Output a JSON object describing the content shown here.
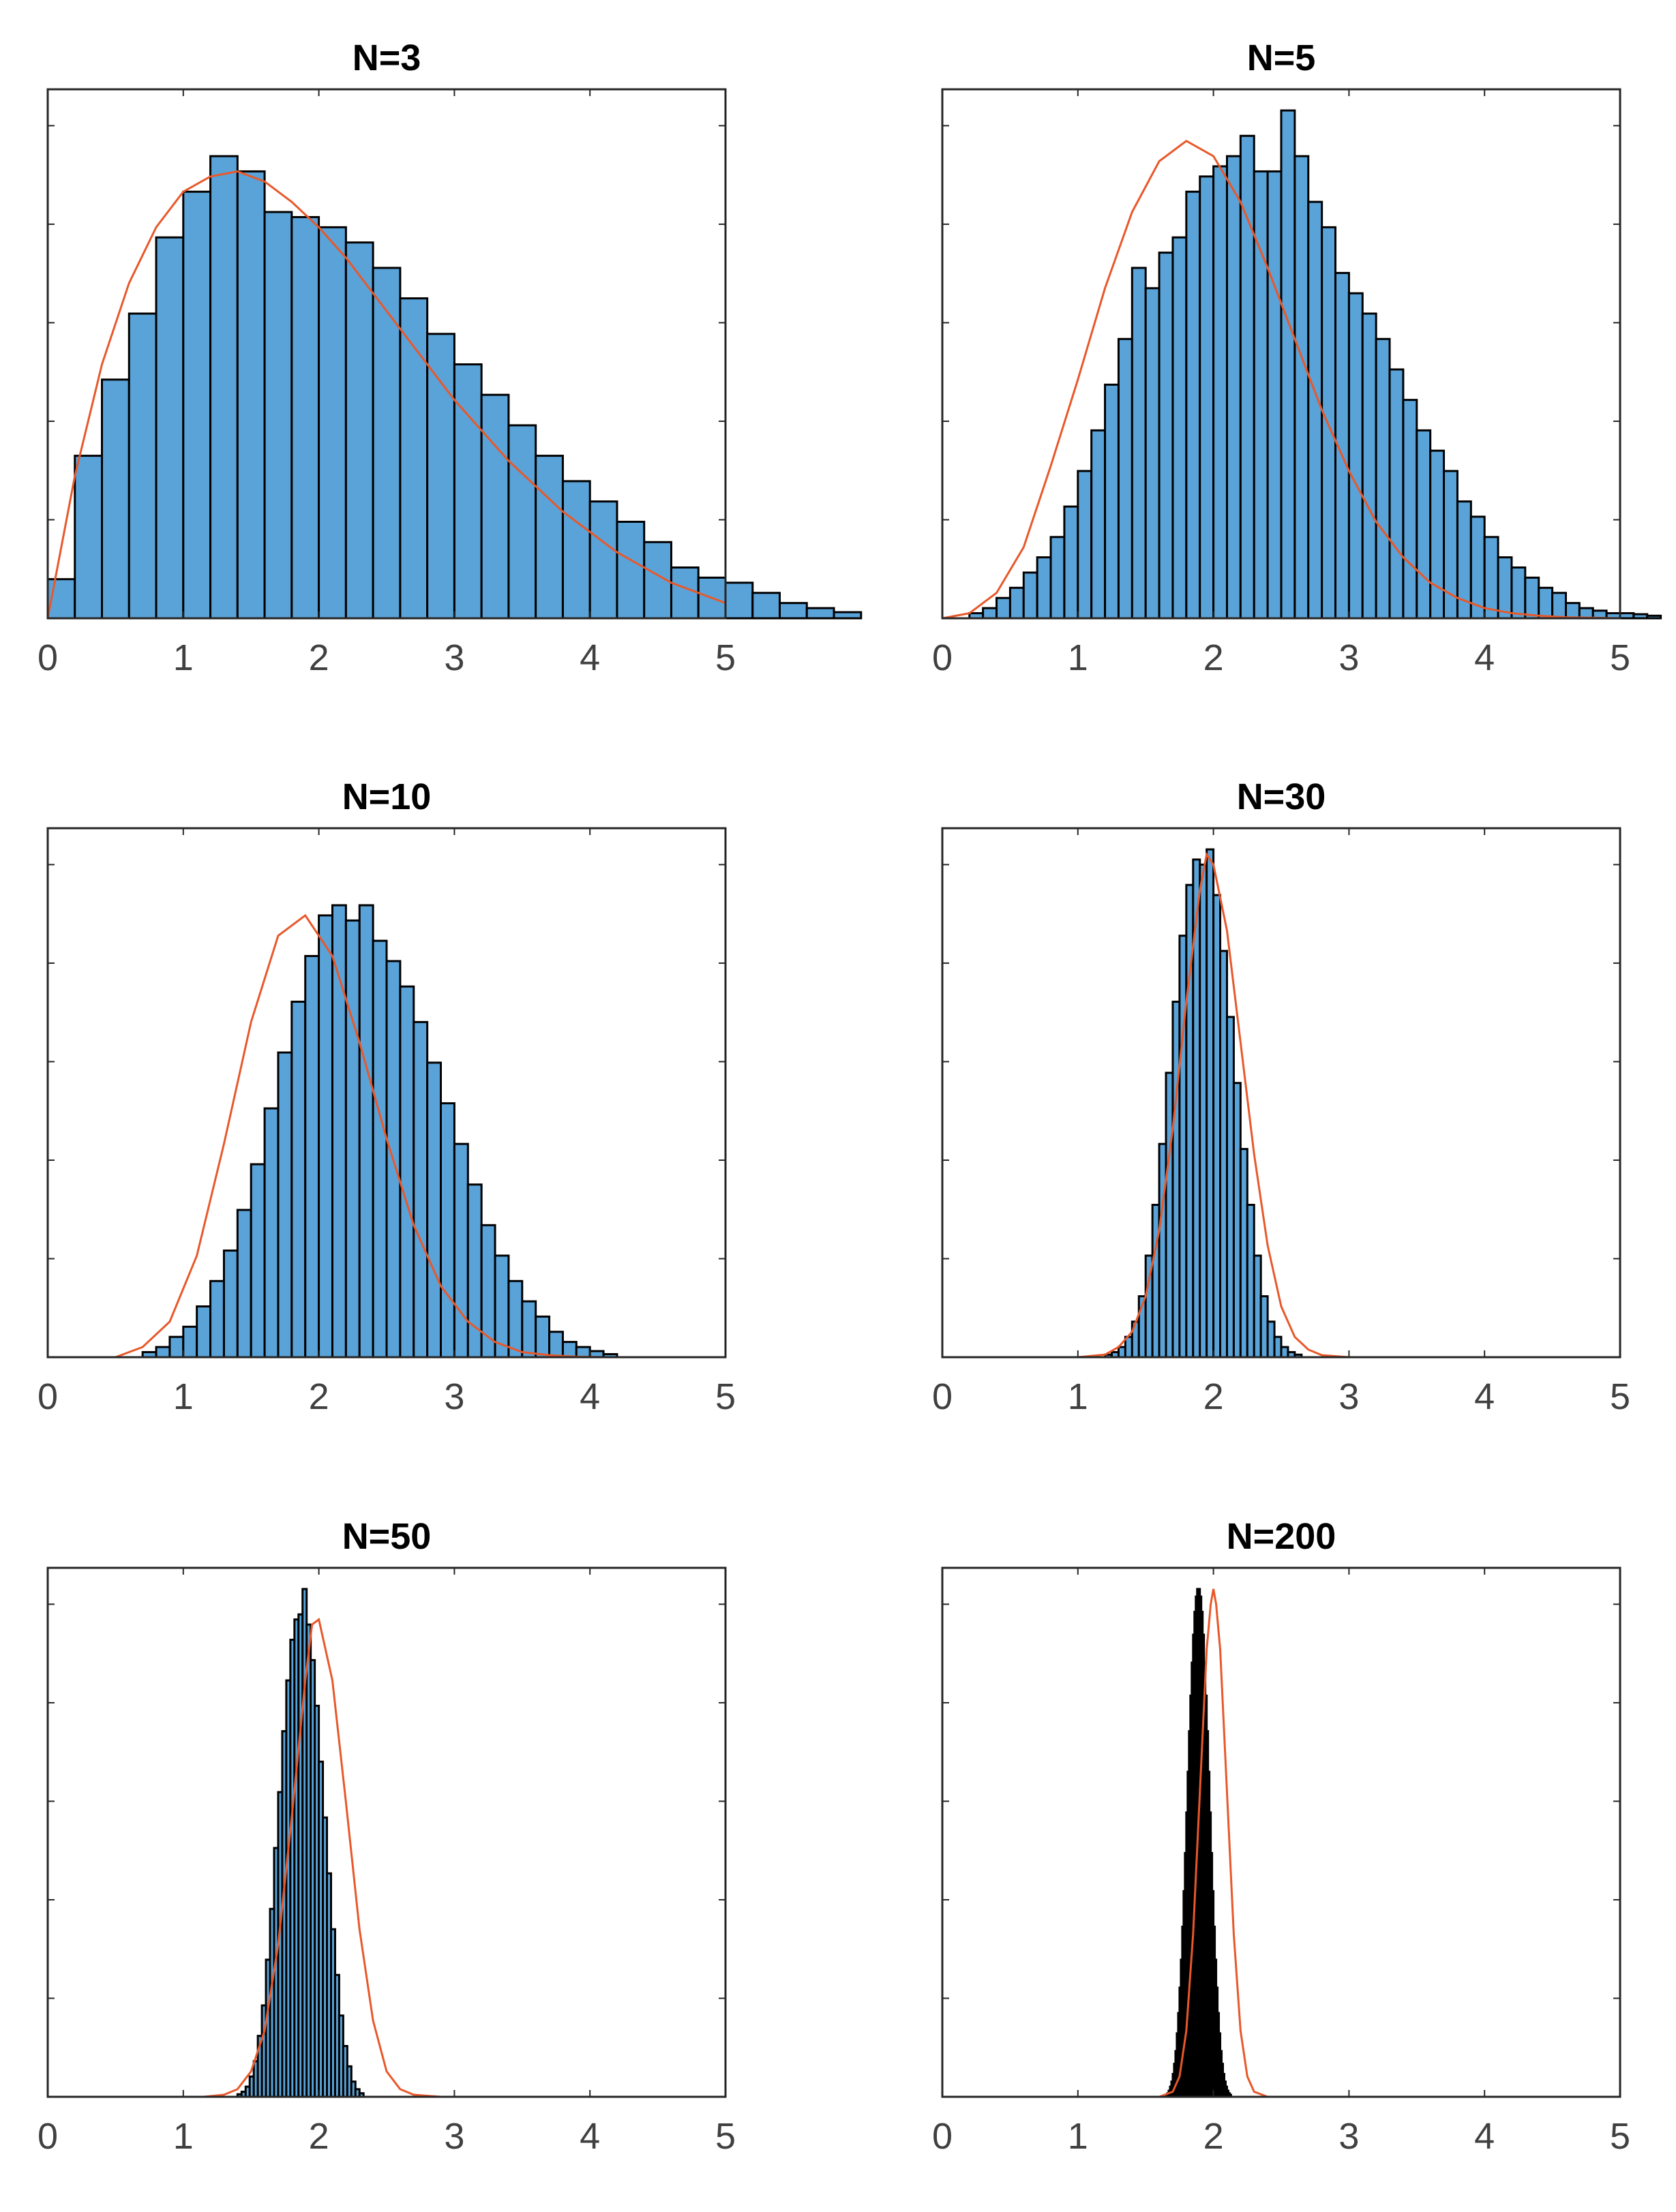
{
  "colors": {
    "bar_fill": "#5aa3d8",
    "bar_edge": "#000000",
    "fit_curve": "#e8582a",
    "axes": "#262626",
    "tick_text": "#404040"
  },
  "chart_data": [
    {
      "type": "bar",
      "title": "N=3",
      "xlabel": "",
      "ylabel": "",
      "xlim": [
        0,
        5
      ],
      "ylim": [
        0,
        1
      ],
      "xticks": [
        "0",
        "1",
        "2",
        "3",
        "4",
        "5"
      ],
      "bins": {
        "start": 0,
        "width": 0.2
      },
      "values": [
        0.077,
        0.32,
        0.47,
        0.6,
        0.75,
        0.84,
        0.91,
        0.88,
        0.8,
        0.79,
        0.77,
        0.74,
        0.69,
        0.63,
        0.56,
        0.5,
        0.44,
        0.38,
        0.32,
        0.27,
        0.23,
        0.19,
        0.15,
        0.1,
        0.08,
        0.07,
        0.05,
        0.03,
        0.02,
        0.012
      ],
      "fit": {
        "x": [
          0.0,
          0.2,
          0.4,
          0.6,
          0.8,
          1.0,
          1.2,
          1.4,
          1.6,
          1.8,
          2.0,
          2.2,
          2.4,
          2.6,
          2.8,
          3.0,
          3.2,
          3.4,
          3.6,
          3.8,
          4.0,
          4.2,
          4.4,
          4.6,
          4.8,
          5.0
        ],
        "y": [
          0.0,
          0.28,
          0.5,
          0.66,
          0.77,
          0.84,
          0.87,
          0.88,
          0.86,
          0.82,
          0.77,
          0.71,
          0.64,
          0.57,
          0.5,
          0.43,
          0.37,
          0.31,
          0.26,
          0.21,
          0.17,
          0.13,
          0.1,
          0.07,
          0.05,
          0.03
        ]
      }
    },
    {
      "type": "bar",
      "title": "N=5",
      "xlabel": "",
      "ylabel": "",
      "xlim": [
        0,
        5
      ],
      "ylim": [
        0,
        1
      ],
      "xticks": [
        "0",
        "1",
        "2",
        "3",
        "4",
        "5"
      ],
      "bins": {
        "start": 0.2,
        "width": 0.1
      },
      "values": [
        0.01,
        0.02,
        0.04,
        0.06,
        0.09,
        0.12,
        0.16,
        0.22,
        0.29,
        0.37,
        0.46,
        0.55,
        0.69,
        0.65,
        0.72,
        0.75,
        0.84,
        0.87,
        0.89,
        0.91,
        0.95,
        0.88,
        0.88,
        1.0,
        0.91,
        0.82,
        0.77,
        0.68,
        0.64,
        0.6,
        0.55,
        0.49,
        0.43,
        0.37,
        0.33,
        0.29,
        0.23,
        0.2,
        0.16,
        0.12,
        0.1,
        0.08,
        0.06,
        0.05,
        0.03,
        0.02,
        0.015,
        0.01,
        0.01,
        0.008,
        0.005
      ],
      "fit": {
        "x": [
          0.0,
          0.2,
          0.4,
          0.6,
          0.8,
          1.0,
          1.2,
          1.4,
          1.6,
          1.8,
          2.0,
          2.2,
          2.4,
          2.6,
          2.8,
          3.0,
          3.2,
          3.4,
          3.6,
          3.8,
          4.0,
          4.2,
          4.4,
          4.6,
          4.8,
          5.0
        ],
        "y": [
          0.0,
          0.01,
          0.05,
          0.14,
          0.3,
          0.47,
          0.65,
          0.8,
          0.9,
          0.94,
          0.91,
          0.82,
          0.69,
          0.55,
          0.41,
          0.29,
          0.19,
          0.12,
          0.07,
          0.04,
          0.02,
          0.01,
          0.005,
          0.002,
          0.001,
          0.0
        ]
      }
    },
    {
      "type": "bar",
      "title": "N=10",
      "xlabel": "",
      "ylabel": "",
      "xlim": [
        0,
        5
      ],
      "ylim": [
        0,
        1
      ],
      "xticks": [
        "0",
        "1",
        "2",
        "3",
        "4",
        "5"
      ],
      "bins": {
        "start": 0.7,
        "width": 0.1
      },
      "values": [
        0.01,
        0.02,
        0.04,
        0.06,
        0.1,
        0.15,
        0.21,
        0.29,
        0.38,
        0.49,
        0.6,
        0.7,
        0.79,
        0.87,
        0.89,
        0.86,
        0.89,
        0.82,
        0.78,
        0.73,
        0.66,
        0.58,
        0.5,
        0.42,
        0.34,
        0.26,
        0.2,
        0.15,
        0.11,
        0.08,
        0.05,
        0.03,
        0.02,
        0.012,
        0.006
      ],
      "fit": {
        "x": [
          0.3,
          0.5,
          0.7,
          0.9,
          1.1,
          1.3,
          1.5,
          1.7,
          1.9,
          2.1,
          2.3,
          2.5,
          2.7,
          2.9,
          3.1,
          3.3,
          3.5,
          3.7,
          3.9,
          4.1,
          4.3,
          4.6
        ],
        "y": [
          0.0,
          0.0,
          0.02,
          0.07,
          0.2,
          0.42,
          0.66,
          0.83,
          0.87,
          0.79,
          0.62,
          0.43,
          0.26,
          0.14,
          0.07,
          0.03,
          0.01,
          0.004,
          0.001,
          0.0,
          0.0,
          0.0
        ]
      }
    },
    {
      "type": "bar",
      "title": "N=30",
      "xlabel": "",
      "ylabel": "",
      "xlim": [
        0,
        5
      ],
      "ylim": [
        0,
        1
      ],
      "xticks": [
        "0",
        "1",
        "2",
        "3",
        "4",
        "5"
      ],
      "bins": {
        "start": 1.2,
        "width": 0.05
      },
      "values": [
        0.005,
        0.01,
        0.02,
        0.04,
        0.07,
        0.12,
        0.2,
        0.3,
        0.42,
        0.56,
        0.7,
        0.83,
        0.93,
        0.98,
        0.97,
        1.0,
        0.91,
        0.8,
        0.67,
        0.54,
        0.41,
        0.3,
        0.2,
        0.12,
        0.07,
        0.04,
        0.02,
        0.01,
        0.005
      ],
      "fit": {
        "x": [
          1.0,
          1.2,
          1.3,
          1.4,
          1.5,
          1.6,
          1.7,
          1.8,
          1.9,
          1.95,
          2.0,
          2.1,
          2.2,
          2.3,
          2.4,
          2.5,
          2.6,
          2.7,
          2.8,
          3.0
        ],
        "y": [
          0.0,
          0.005,
          0.02,
          0.05,
          0.12,
          0.25,
          0.45,
          0.7,
          0.92,
          0.99,
          0.97,
          0.84,
          0.62,
          0.4,
          0.22,
          0.1,
          0.04,
          0.015,
          0.004,
          0.0
        ]
      }
    },
    {
      "type": "bar",
      "title": "N=50",
      "xlabel": "",
      "ylabel": "",
      "xlim": [
        0,
        5
      ],
      "ylim": [
        0,
        1
      ],
      "xticks": [
        "0",
        "1",
        "2",
        "3",
        "4",
        "5"
      ],
      "bins": {
        "start": 1.4,
        "width": 0.03
      },
      "values": [
        0.005,
        0.01,
        0.02,
        0.04,
        0.07,
        0.12,
        0.18,
        0.27,
        0.37,
        0.49,
        0.6,
        0.72,
        0.82,
        0.9,
        0.94,
        0.95,
        1.0,
        0.93,
        0.86,
        0.77,
        0.66,
        0.55,
        0.44,
        0.33,
        0.24,
        0.16,
        0.1,
        0.06,
        0.03,
        0.015,
        0.007
      ],
      "fit": {
        "x": [
          1.15,
          1.3,
          1.4,
          1.5,
          1.6,
          1.7,
          1.8,
          1.9,
          1.95,
          2.0,
          2.1,
          2.2,
          2.3,
          2.4,
          2.5,
          2.6,
          2.7,
          2.9
        ],
        "y": [
          0.0,
          0.004,
          0.015,
          0.05,
          0.13,
          0.3,
          0.55,
          0.82,
          0.93,
          0.94,
          0.82,
          0.58,
          0.33,
          0.15,
          0.05,
          0.015,
          0.004,
          0.0
        ]
      }
    },
    {
      "type": "bar",
      "title": "N=200",
      "xlabel": "",
      "ylabel": "",
      "xlim": [
        0,
        5
      ],
      "ylim": [
        0,
        1
      ],
      "xticks": [
        "0",
        "1",
        "2",
        "3",
        "4",
        "5"
      ],
      "bins": {
        "start": 1.65,
        "width": 0.01
      },
      "values": [
        0.004,
        0.007,
        0.012,
        0.02,
        0.03,
        0.045,
        0.065,
        0.09,
        0.125,
        0.165,
        0.215,
        0.27,
        0.335,
        0.405,
        0.48,
        0.56,
        0.64,
        0.72,
        0.79,
        0.855,
        0.91,
        0.955,
        0.985,
        1.0,
        1.0,
        0.985,
        0.955,
        0.91,
        0.855,
        0.79,
        0.72,
        0.64,
        0.56,
        0.48,
        0.405,
        0.335,
        0.27,
        0.215,
        0.165,
        0.125,
        0.09,
        0.065,
        0.045,
        0.03,
        0.02,
        0.012,
        0.007,
        0.004
      ],
      "fit": {
        "x": [
          1.6,
          1.7,
          1.75,
          1.8,
          1.85,
          1.9,
          1.95,
          1.98,
          2.0,
          2.02,
          2.05,
          2.1,
          2.15,
          2.2,
          2.25,
          2.3,
          2.4
        ],
        "y": [
          0.0,
          0.01,
          0.04,
          0.13,
          0.32,
          0.6,
          0.88,
          0.97,
          1.0,
          0.97,
          0.88,
          0.6,
          0.32,
          0.13,
          0.04,
          0.01,
          0.0
        ]
      }
    }
  ]
}
